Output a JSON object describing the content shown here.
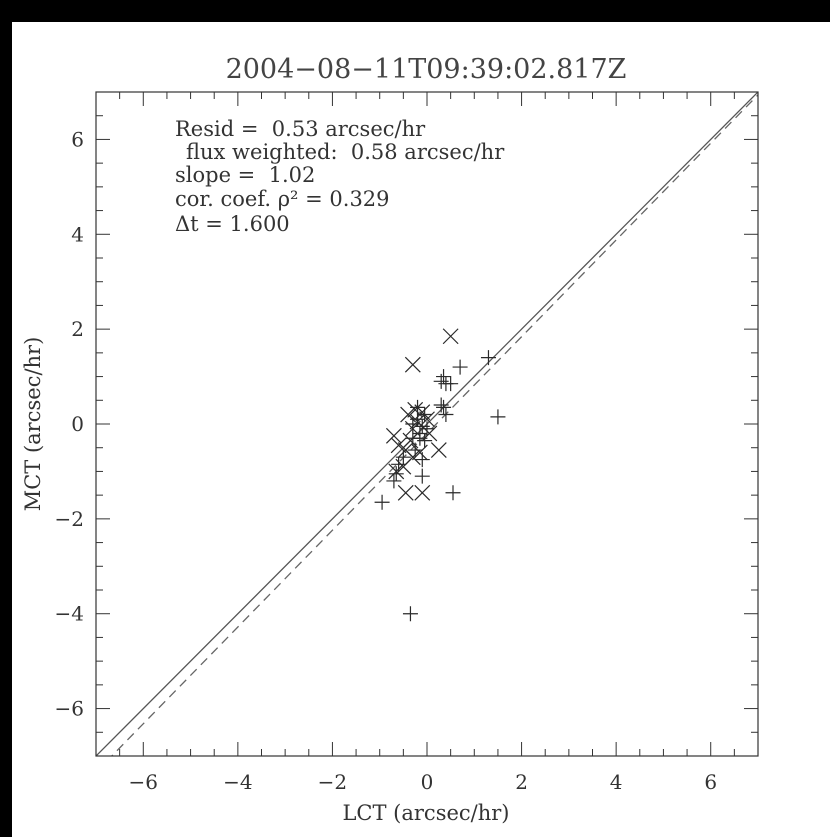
{
  "chart_data": {
    "type": "scatter",
    "title": "2004−08−11T09:39:02.817Z",
    "xlabel": "LCT (arcsec/hr)",
    "ylabel": "MCT (arcsec/hr)",
    "xlim": [
      -7,
      7
    ],
    "ylim": [
      -7,
      7
    ],
    "x_ticks": [
      -6,
      -4,
      -2,
      0,
      2,
      4,
      6
    ],
    "y_ticks": [
      -6,
      -4,
      -2,
      0,
      2,
      4,
      6
    ],
    "x_tick_labels": [
      "−6",
      "−4",
      "−2",
      "0",
      "2",
      "4",
      "6"
    ],
    "y_tick_labels": [
      "−6",
      "−4",
      "−2",
      "0",
      "2",
      "4",
      "6"
    ],
    "annotations": [
      "Resid =  0.53 arcsec/hr",
      "flux weighted:  0.58 arcsec/hr",
      "slope =  1.02",
      "cor. coef. ρ² = 0.329",
      "Δt = 1.600"
    ],
    "lines": [
      {
        "style": "solid",
        "slope": 1.0,
        "intercept": 0.0
      },
      {
        "style": "dashed",
        "slope": 1.02,
        "intercept": -0.2
      }
    ],
    "series": [
      {
        "marker": "plus",
        "points": [
          [
            1.3,
            1.4
          ],
          [
            0.7,
            1.2
          ],
          [
            0.35,
            1.0
          ],
          [
            0.3,
            0.9
          ],
          [
            0.4,
            0.85
          ],
          [
            0.5,
            0.85
          ],
          [
            0.3,
            0.4
          ],
          [
            0.35,
            0.35
          ],
          [
            0.4,
            0.2
          ],
          [
            1.5,
            0.15
          ],
          [
            -0.05,
            0.2
          ],
          [
            -0.2,
            0.1
          ],
          [
            -0.1,
            -0.05
          ],
          [
            0.0,
            -0.1
          ],
          [
            -0.15,
            -0.2
          ],
          [
            -0.3,
            -0.3
          ],
          [
            -0.05,
            -0.35
          ],
          [
            -0.25,
            -0.55
          ],
          [
            -0.5,
            -0.7
          ],
          [
            -0.1,
            -0.75
          ],
          [
            -0.6,
            -0.85
          ],
          [
            -0.1,
            -1.1
          ],
          [
            -0.65,
            -1.05
          ],
          [
            -0.7,
            -1.2
          ],
          [
            -0.95,
            -1.65
          ],
          [
            0.55,
            -1.45
          ],
          [
            -0.35,
            -4.0
          ],
          [
            -0.2,
            0.35
          ],
          [
            -0.3,
            0.0
          ],
          [
            -0.15,
            -0.3
          ]
        ]
      },
      {
        "marker": "x",
        "points": [
          [
            0.5,
            1.85
          ],
          [
            -0.3,
            1.25
          ],
          [
            -0.4,
            0.2
          ],
          [
            -0.25,
            0.3
          ],
          [
            -0.1,
            0.25
          ],
          [
            0.0,
            0.1
          ],
          [
            -0.3,
            -0.1
          ],
          [
            -0.7,
            -0.25
          ],
          [
            -0.6,
            -0.45
          ],
          [
            -0.45,
            -0.55
          ],
          [
            -0.3,
            -0.7
          ],
          [
            -0.15,
            -0.6
          ],
          [
            0.25,
            -0.55
          ],
          [
            -0.5,
            -0.9
          ],
          [
            -0.65,
            -1.0
          ],
          [
            -0.45,
            -1.45
          ],
          [
            -0.1,
            -1.45
          ],
          [
            -0.2,
            0.05
          ],
          [
            0.05,
            -0.2
          ],
          [
            -0.35,
            -0.35
          ]
        ]
      }
    ],
    "grid": false,
    "colors": {
      "marks": "#2a2a2a",
      "axes": "#333333",
      "frame_bg": "#000000"
    }
  }
}
